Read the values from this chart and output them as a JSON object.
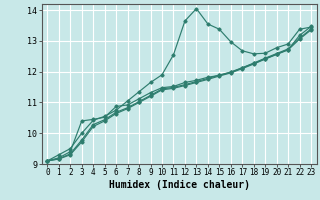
{
  "xlabel": "Humidex (Indice chaleur)",
  "xlim": [
    -0.5,
    23.5
  ],
  "ylim": [
    9,
    14.2
  ],
  "yticks": [
    9,
    10,
    11,
    12,
    13,
    14
  ],
  "xticks": [
    0,
    1,
    2,
    3,
    4,
    5,
    6,
    7,
    8,
    9,
    10,
    11,
    12,
    13,
    14,
    15,
    16,
    17,
    18,
    19,
    20,
    21,
    22,
    23
  ],
  "bg_color": "#c8e8e8",
  "grid_color": "#ffffff",
  "line_color": "#2e7d6e",
  "series": [
    {
      "x": [
        0,
        1,
        2,
        3,
        4,
        5,
        6,
        7,
        8,
        9,
        10,
        11,
        12,
        13,
        14,
        15,
        16,
        17,
        18,
        19,
        20,
        21,
        22,
        23
      ],
      "y": [
        9.1,
        9.3,
        9.5,
        10.0,
        10.42,
        10.55,
        10.75,
        11.05,
        11.35,
        11.65,
        11.9,
        12.55,
        13.65,
        14.05,
        13.55,
        13.38,
        12.97,
        12.68,
        12.58,
        12.6,
        12.78,
        12.9,
        13.38,
        13.45
      ]
    },
    {
      "x": [
        0,
        1,
        2,
        3,
        4,
        5,
        6,
        7,
        8,
        9,
        10,
        11,
        12,
        13,
        14,
        15,
        16,
        17,
        18,
        19,
        20,
        21,
        22,
        23
      ],
      "y": [
        9.1,
        9.2,
        9.4,
        10.4,
        10.45,
        10.52,
        10.87,
        10.92,
        11.12,
        11.32,
        11.48,
        11.52,
        11.65,
        11.72,
        11.82,
        11.88,
        11.98,
        12.12,
        12.27,
        12.42,
        12.57,
        12.72,
        13.18,
        13.47
      ]
    },
    {
      "x": [
        0,
        1,
        2,
        3,
        4,
        5,
        6,
        7,
        8,
        9,
        10,
        11,
        12,
        13,
        14,
        15,
        16,
        17,
        18,
        19,
        20,
        21,
        22,
        23
      ],
      "y": [
        9.1,
        9.17,
        9.33,
        9.78,
        10.28,
        10.44,
        10.68,
        10.83,
        11.03,
        11.23,
        11.44,
        11.49,
        11.58,
        11.68,
        11.78,
        11.89,
        11.99,
        12.13,
        12.28,
        12.44,
        12.59,
        12.74,
        13.09,
        13.39
      ]
    },
    {
      "x": [
        0,
        1,
        2,
        3,
        4,
        5,
        6,
        7,
        8,
        9,
        10,
        11,
        12,
        13,
        14,
        15,
        16,
        17,
        18,
        19,
        20,
        21,
        22,
        23
      ],
      "y": [
        9.1,
        9.16,
        9.3,
        9.72,
        10.22,
        10.4,
        10.64,
        10.8,
        11.0,
        11.2,
        11.41,
        11.46,
        11.55,
        11.65,
        11.75,
        11.86,
        11.96,
        12.1,
        12.25,
        12.41,
        12.56,
        12.71,
        13.06,
        13.36
      ]
    }
  ]
}
